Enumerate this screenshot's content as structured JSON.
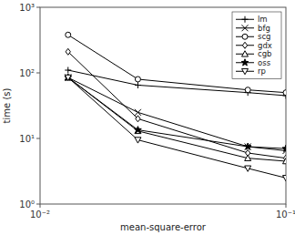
{
  "chart_data": {
    "type": "line",
    "xlabel": "mean-square-error",
    "ylabel": "time (s)",
    "log": true,
    "xlim": [
      0.01,
      0.1
    ],
    "ylim": [
      1.0,
      1000.0
    ],
    "xticks": [
      {
        "value": 0.01,
        "label": "10⁻²"
      },
      {
        "value": 0.1,
        "label": "10⁻¹"
      }
    ],
    "yticks": [
      {
        "value": 1,
        "label": "10⁰"
      },
      {
        "value": 10,
        "label": "10¹"
      },
      {
        "value": 100,
        "label": "10²"
      },
      {
        "value": 1000,
        "label": "10³"
      }
    ],
    "grid": false,
    "legend": "upper right",
    "x": [
      0.013,
      0.025,
      0.07,
      0.1
    ],
    "series": [
      {
        "name": "lm",
        "color": "black",
        "marker": "plus",
        "values": [
          110.0,
          65.0,
          50.0,
          45.0
        ]
      },
      {
        "name": "bfg",
        "color": "black",
        "marker": "x",
        "values": [
          85.0,
          25.0,
          7.5,
          6.5
        ]
      },
      {
        "name": "scg",
        "color": "black",
        "marker": "circle",
        "values": [
          380.0,
          80.0,
          55.0,
          50.0
        ]
      },
      {
        "name": "gdx",
        "color": "black",
        "marker": "diamond",
        "values": [
          210.0,
          20.0,
          6.0,
          5.0
        ]
      },
      {
        "name": "cgb",
        "color": "black",
        "marker": "triangle-up",
        "values": [
          85.0,
          13.0,
          5.0,
          4.5
        ]
      },
      {
        "name": "oss",
        "color": "black",
        "marker": "star",
        "values": [
          85.0,
          13.5,
          7.5,
          7.0
        ]
      },
      {
        "name": "rp",
        "color": "black",
        "marker": "triangle-down",
        "values": [
          85.0,
          9.5,
          3.5,
          2.5
        ]
      }
    ]
  }
}
